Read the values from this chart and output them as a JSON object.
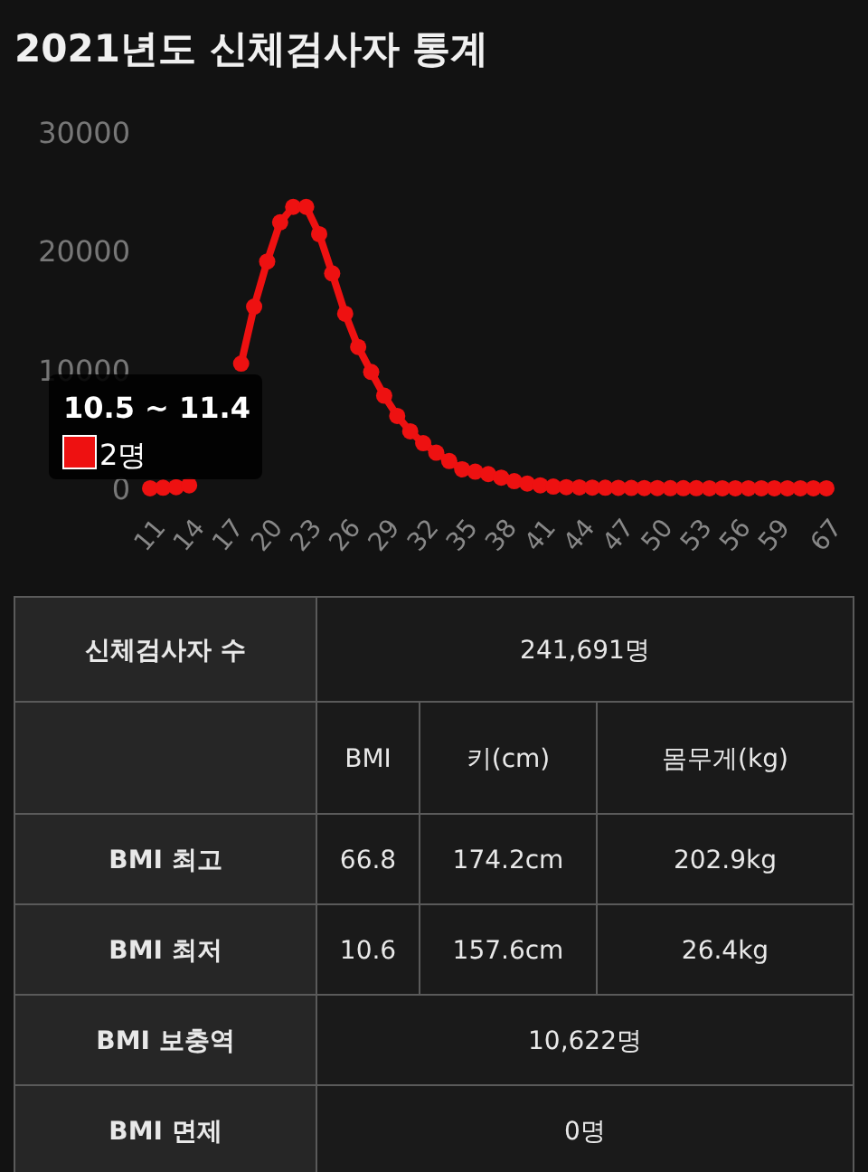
{
  "chart_data": [
    {
      "type": "line",
      "title": "2021년도 신체검사자 통계",
      "categories": [
        "11",
        null,
        null,
        "14",
        null,
        null,
        "17",
        null,
        null,
        "20",
        null,
        null,
        "23",
        null,
        null,
        "26",
        null,
        null,
        "29",
        null,
        null,
        "32",
        null,
        null,
        "35",
        null,
        null,
        "38",
        null,
        null,
        "41",
        null,
        null,
        "44",
        null,
        null,
        "47",
        null,
        null,
        "50",
        null,
        null,
        "53",
        null,
        null,
        "56",
        null,
        null,
        "59",
        null,
        null,
        null,
        "67"
      ],
      "series": [
        {
          "color": "#ee1111",
          "values": [
            2,
            50,
            100,
            250,
            null,
            null,
            null,
            10500,
            15300,
            19100,
            22400,
            23700,
            23700,
            21400,
            18100,
            14700,
            11900,
            9800,
            7800,
            6100,
            4800,
            3800,
            3000,
            2300,
            1600,
            1400,
            1200,
            900,
            600,
            400,
            250,
            150,
            100,
            80,
            60,
            50,
            40,
            30,
            20,
            20,
            15,
            10,
            10,
            5,
            5,
            5,
            5,
            5,
            5,
            5,
            5,
            5,
            5
          ]
        }
      ],
      "ylim": [
        0,
        30000
      ],
      "yticks": [
        0,
        10000,
        20000,
        30000
      ],
      "marker": "circle",
      "line_style": "solid",
      "annotations": [
        {
          "text": "10.5 ~ 11.4",
          "x": "11",
          "y": 2
        },
        {
          "text": "2명",
          "x": "11",
          "y": 2
        }
      ]
    },
    {
      "type": "other",
      "annotations": [
        "신체검사자 수",
        "241,691명",
        "BMI",
        "키(cm)",
        "몸무게(kg)",
        "BMI 최고",
        "66.8",
        "174.2cm",
        "202.9kg",
        "BMI 최저",
        "10.6",
        "157.6cm",
        "26.4kg",
        "BMI 보충역",
        "10,622명",
        "BMI 면제",
        "0명"
      ]
    }
  ]
}
